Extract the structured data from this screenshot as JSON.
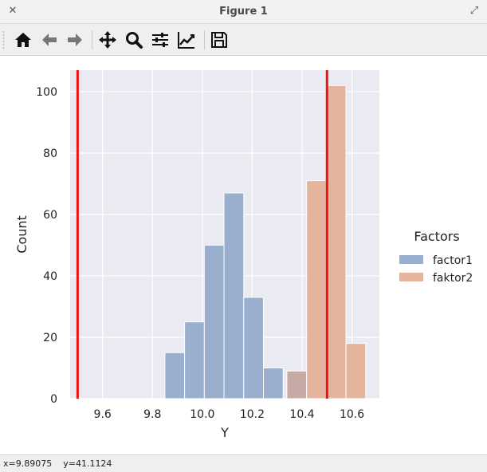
{
  "window": {
    "title": "Figure 1",
    "close_glyph": "✕",
    "maximize_glyph": "⤢"
  },
  "toolbar": {
    "buttons": [
      {
        "name": "home-icon",
        "label": "Home"
      },
      {
        "name": "back-arrow-icon",
        "label": "Back"
      },
      {
        "name": "forward-arrow-icon",
        "label": "Forward"
      },
      {
        "name": "pan-move-icon",
        "label": "Pan"
      },
      {
        "name": "zoom-magnifier-icon",
        "label": "Zoom"
      },
      {
        "name": "subplots-sliders-icon",
        "label": "Configure subplots"
      },
      {
        "name": "axes-line-chart-icon",
        "label": "Edit axis"
      },
      {
        "name": "save-floppy-icon",
        "label": "Save"
      }
    ]
  },
  "status": {
    "x": "x=9.89075",
    "y": "y=41.1124"
  },
  "colors": {
    "axes_bg": "#eaeaf2",
    "grid": "#ffffff",
    "factor1": "#9aaece",
    "faktor2": "#e4b59c",
    "overlap": "#c7a9a6",
    "vline": "#ee1111"
  },
  "chart_data": {
    "type": "bar",
    "xlabel": "Y",
    "ylabel": "Count",
    "xlim": [
      9.47,
      10.71
    ],
    "ylim": [
      0,
      107
    ],
    "xticks": [
      9.6,
      9.8,
      10.0,
      10.2,
      10.4,
      10.6
    ],
    "xtick_labels": [
      "9.6",
      "9.8",
      "10.0",
      "10.2",
      "10.4",
      "10.6"
    ],
    "yticks": [
      0,
      20,
      40,
      60,
      80,
      100
    ],
    "ytick_labels": [
      "0",
      "20",
      "40",
      "60",
      "80",
      "100"
    ],
    "grid": true,
    "legend": {
      "title": "Factors",
      "placement": "outside-right",
      "entries": [
        "factor1",
        "faktor2"
      ]
    },
    "series": [
      {
        "name": "factor1",
        "bin_edges": [
          9.85,
          9.929,
          10.008,
          10.087,
          10.166,
          10.245,
          10.324
        ],
        "counts": [
          15,
          25,
          50,
          67,
          33,
          10
        ]
      },
      {
        "name": "faktor2",
        "bin_edges": [
          10.339,
          10.418,
          10.497,
          10.576,
          10.655
        ],
        "counts": [
          9,
          71,
          102,
          18
        ]
      }
    ],
    "vlines": [
      9.5,
      10.5
    ]
  }
}
